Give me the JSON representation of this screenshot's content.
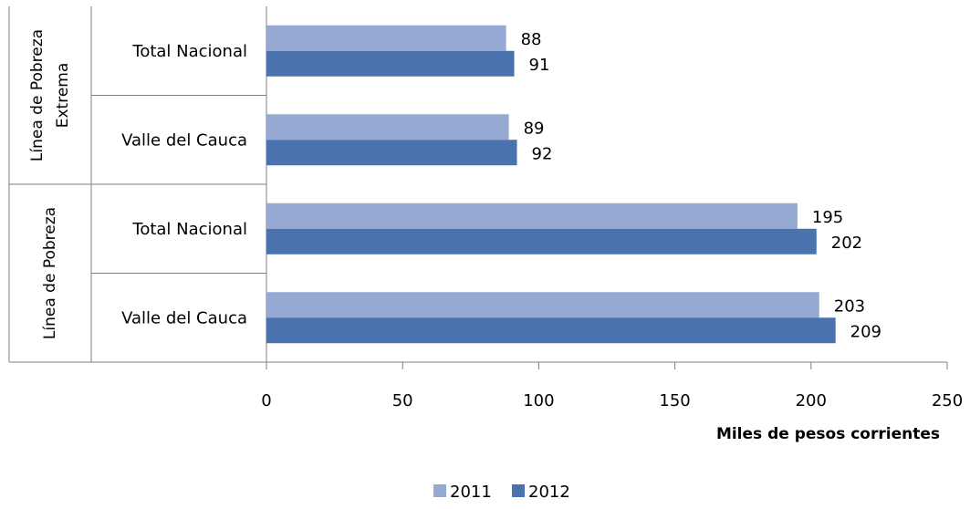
{
  "chart_data": {
    "type": "bar",
    "orientation": "horizontal",
    "groups": [
      {
        "label": "Línea de Pobreza Extrema",
        "label_lines": [
          "Línea de Pobreza",
          "Extrema"
        ],
        "categories": [
          "Total Nacional",
          "Valle del Cauca"
        ]
      },
      {
        "label": "Línea de Pobreza",
        "label_lines": [
          "Línea de Pobreza"
        ],
        "categories": [
          "Total Nacional",
          "Valle del Cauca"
        ]
      }
    ],
    "categories": [
      "Total Nacional",
      "Valle del Cauca",
      "Total Nacional",
      "Valle del Cauca"
    ],
    "series": [
      {
        "name": "2011",
        "color": "#95a9d3",
        "values": [
          88,
          89,
          195,
          203
        ]
      },
      {
        "name": "2012",
        "color": "#4a72ac",
        "values": [
          91,
          92,
          202,
          209
        ]
      }
    ],
    "xlabel": "Miles de pesos corrientes",
    "xlim": [
      0,
      250
    ],
    "xticks": [
      0,
      50,
      100,
      150,
      200,
      250
    ],
    "grid": false,
    "legend_position": "bottom"
  }
}
